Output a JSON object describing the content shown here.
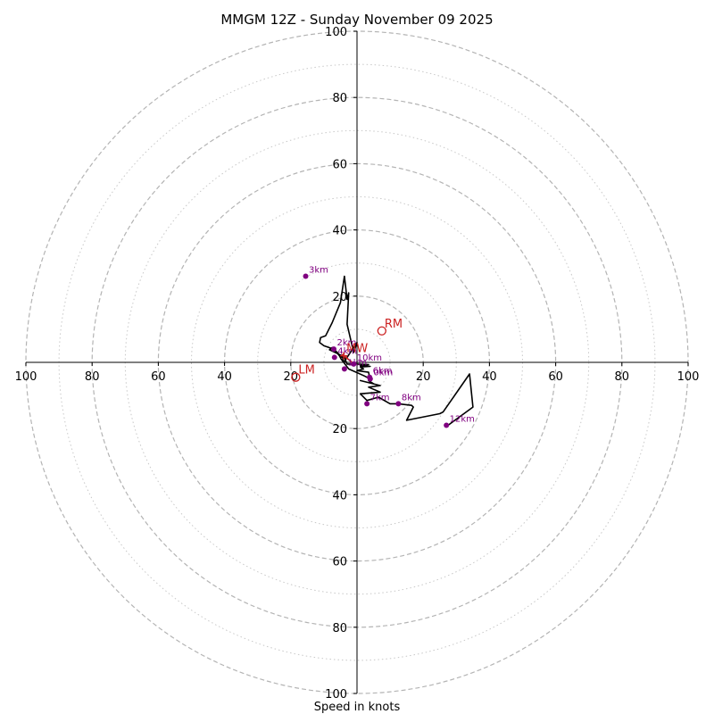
{
  "chart_data": {
    "type": "hodograph",
    "title": "MMGM 12Z - Sunday November 09 2025",
    "xlabel": "Speed in knots",
    "range": [
      -100,
      100
    ],
    "rings": [
      20,
      40,
      60,
      80,
      100
    ],
    "minor_rings": [
      10,
      30,
      50,
      70,
      90
    ],
    "x_tick_labels": [
      "100",
      "80",
      "60",
      "40",
      "20",
      "20",
      "40",
      "60",
      "80",
      "100"
    ],
    "x_tick_values": [
      -100,
      -80,
      -60,
      -40,
      -20,
      20,
      40,
      60,
      80,
      100
    ],
    "y_tick_labels": [
      "100",
      "80",
      "60",
      "40",
      "20",
      "20",
      "40",
      "60",
      "80",
      "100"
    ],
    "y_tick_values": [
      100,
      80,
      60,
      40,
      20,
      -20,
      -40,
      -60,
      -80,
      -100
    ],
    "wind_trace": {
      "u": [
        4.0,
        2.0,
        -2.5,
        -4.8,
        -5.3,
        -7.0,
        -10.0,
        -11.3,
        -11.0,
        -9.5,
        -7.5,
        -5.0,
        -3.8,
        -3.0,
        -2.5,
        -3.0,
        -1.0,
        0.0,
        -4.0,
        -4.5,
        -8.3,
        -7.5,
        -5.5,
        -4.5,
        -3.8,
        -3.0,
        -1.0,
        0.0,
        3.5,
        1.0,
        4.0,
        1.0,
        2.0,
        0.0,
        3.5,
        3.8,
        3.5,
        5.0,
        1.0,
        7.0,
        3.5,
        7.0,
        1.0,
        3.0,
        6.5,
        10.0,
        12.5,
        16.5,
        17.0,
        15.0,
        25.0,
        26.0,
        34.0,
        35.0,
        27.5
      ],
      "v": [
        -5.0,
        -4.0,
        -2.0,
        1.0,
        2.0,
        4.0,
        5.0,
        6.0,
        7.5,
        8.0,
        12.0,
        18.0,
        26.0,
        19.0,
        21.0,
        11.5,
        3.0,
        6.0,
        0.0,
        2.0,
        3.8,
        4.5,
        2.5,
        1.5,
        1.5,
        -0.5,
        -0.5,
        -0.5,
        -0.7,
        -1.0,
        -1.2,
        -1.4,
        -2.0,
        -2.5,
        -3.0,
        -4.5,
        -5.5,
        -6.5,
        -5.5,
        -7.0,
        -7.5,
        -9.0,
        -9.5,
        -11.5,
        -10.5,
        -12.5,
        -12.5,
        -13.0,
        -13.5,
        -17.5,
        -15.5,
        -15.0,
        -3.5,
        -13.5,
        -19.0
      ],
      "color": "#000000"
    },
    "height_markers": [
      {
        "label": "0km",
        "u": 4.0,
        "v": -5.0
      },
      {
        "label": "1km",
        "u": -3.8,
        "v": -2.0
      },
      {
        "label": "2km",
        "u": -7.0,
        "v": 4.0
      },
      {
        "label": "3km",
        "u": -15.5,
        "v": 26.0
      },
      {
        "label": "4km",
        "u": -6.8,
        "v": 1.5
      },
      {
        "label": "6km",
        "u": 3.8,
        "v": -4.5
      },
      {
        "label": "7km",
        "u": 3.0,
        "v": -12.5
      },
      {
        "label": "8km",
        "u": 12.5,
        "v": -12.5
      },
      {
        "label": "10km",
        "u": -1.0,
        "v": -0.5
      },
      {
        "label": "12km",
        "u": 27.0,
        "v": -19.0
      }
    ],
    "marker_color": "#800080",
    "storm_motion": [
      {
        "label": "RM",
        "u": 7.5,
        "v": 9.5
      },
      {
        "label": "LM",
        "u": -18.5,
        "v": -4.5
      },
      {
        "label": "MW",
        "u": -4.0,
        "v": 2.0
      }
    ],
    "motion_color": "#cc2222",
    "mean_wind_segment": {
      "from": [
        -4.5,
        2.5
      ],
      "to": [
        -1.5,
        0.0
      ]
    }
  }
}
